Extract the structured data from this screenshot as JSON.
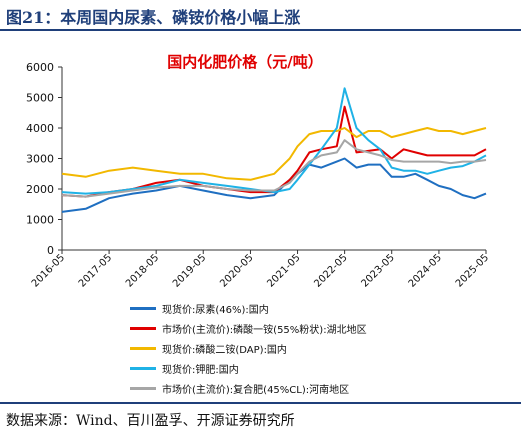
{
  "figure_title": "图21：本周国内尿素、磷铵价格小幅上涨",
  "source_note": "数据来源：Wind、百川盈孚、开源证券研究所",
  "chart_data": {
    "type": "line",
    "title": "国内化肥价格（元/吨）",
    "title_color": "#e00000",
    "ylim": [
      0,
      6000
    ],
    "yticks": [
      0,
      1000,
      2000,
      3000,
      4000,
      5000,
      6000
    ],
    "xticks": [
      "2016-05",
      "2017-05",
      "2018-05",
      "2019-05",
      "2020-05",
      "2021-05",
      "2022-05",
      "2023-05",
      "2024-05",
      "2025-05"
    ],
    "x": [
      "2016-05",
      "2016-11",
      "2017-05",
      "2017-11",
      "2018-05",
      "2018-11",
      "2019-05",
      "2019-11",
      "2020-05",
      "2020-11",
      "2021-03",
      "2021-05",
      "2021-08",
      "2021-11",
      "2022-03",
      "2022-05",
      "2022-08",
      "2022-11",
      "2023-02",
      "2023-05",
      "2023-08",
      "2023-11",
      "2024-02",
      "2024-05",
      "2024-08",
      "2024-11",
      "2025-02",
      "2025-05"
    ],
    "series": [
      {
        "name": "现货价:尿素(46%):国内",
        "color": "#1f6fc1",
        "values": [
          1250,
          1350,
          1700,
          1850,
          1950,
          2100,
          1950,
          1800,
          1700,
          1800,
          2300,
          2500,
          2800,
          2700,
          2900,
          3000,
          2700,
          2800,
          2800,
          2400,
          2400,
          2500,
          2300,
          2100,
          2000,
          1800,
          1700,
          1850
        ]
      },
      {
        "name": "市场价(主流价):磷酸一铵(55%粉状):湖北地区",
        "color": "#e00000",
        "values": [
          1800,
          1750,
          1900,
          2000,
          2200,
          2300,
          2100,
          2000,
          1900,
          1900,
          2300,
          2600,
          3200,
          3300,
          3400,
          4700,
          3200,
          3250,
          3300,
          3000,
          3300,
          3200,
          3100,
          3100,
          3100,
          3100,
          3100,
          3300
        ]
      },
      {
        "name": "现货价:磷酸二铵(DAP):国内",
        "color": "#f2b800",
        "values": [
          2500,
          2400,
          2600,
          2700,
          2600,
          2500,
          2500,
          2350,
          2300,
          2500,
          3000,
          3400,
          3800,
          3900,
          3900,
          4000,
          3700,
          3900,
          3900,
          3700,
          3800,
          3900,
          4000,
          3900,
          3900,
          3800,
          3900,
          4000
        ]
      },
      {
        "name": "现货价:钾肥:国内",
        "color": "#1fb2e6",
        "values": [
          1900,
          1850,
          1900,
          2000,
          2100,
          2300,
          2200,
          2100,
          2000,
          1900,
          2000,
          2300,
          2800,
          3300,
          4000,
          5300,
          4000,
          3600,
          3300,
          2700,
          2600,
          2600,
          2500,
          2600,
          2700,
          2750,
          2900,
          3100
        ]
      },
      {
        "name": "市场价(主流价):复合肥(45%CL):河南地区",
        "color": "#a6a6a6",
        "values": [
          1800,
          1750,
          1850,
          1950,
          2050,
          2100,
          2100,
          2000,
          1950,
          1950,
          2200,
          2500,
          2900,
          3100,
          3200,
          3600,
          3300,
          3200,
          3100,
          2950,
          2900,
          2900,
          2900,
          2900,
          2850,
          2900,
          2900,
          2950
        ]
      }
    ]
  }
}
